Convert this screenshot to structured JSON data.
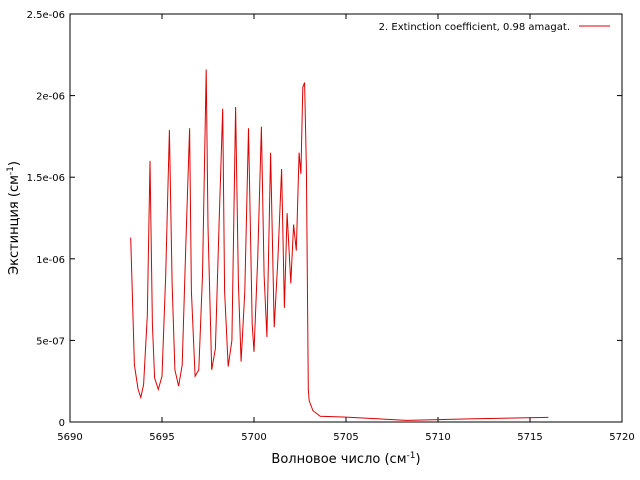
{
  "chart_data": {
    "type": "line",
    "title": "",
    "xlabel": "Волновое число (см",
    "xlabel_sup": "-1",
    "xlabel_tail": ")",
    "ylabel": "Экстинция (см",
    "ylabel_sup": "-1",
    "ylabel_tail": ")",
    "xlim": [
      5690,
      5720
    ],
    "ylim": [
      0,
      2.5e-06
    ],
    "x_ticks": [
      5690,
      5695,
      5700,
      5705,
      5710,
      5715,
      5720
    ],
    "x_tick_labels": [
      "5690",
      "5695",
      "5700",
      "5705",
      "5710",
      "5715",
      "5720"
    ],
    "y_ticks": [
      0,
      5e-07,
      1e-06,
      1.5e-06,
      2e-06,
      2.5e-06
    ],
    "y_tick_labels": [
      "0",
      "5e-07",
      "1e-06",
      "1.5e-06",
      "2e-06",
      "2.5e-06"
    ],
    "grid": false,
    "legend_position": "top-right",
    "series_color": "#dd0000",
    "series": [
      {
        "name": "2. Extinction coefficient, 0.98 amagat.",
        "x": [
          5693.3,
          5693.5,
          5693.7,
          5693.85,
          5694.0,
          5694.2,
          5694.35,
          5694.48,
          5694.6,
          5694.8,
          5695.0,
          5695.2,
          5695.4,
          5695.55,
          5695.7,
          5695.9,
          5696.1,
          5696.3,
          5696.5,
          5696.6,
          5696.8,
          5697.0,
          5697.2,
          5697.4,
          5697.5,
          5697.7,
          5697.9,
          5698.1,
          5698.3,
          5698.4,
          5698.6,
          5698.8,
          5699.0,
          5699.15,
          5699.3,
          5699.5,
          5699.7,
          5699.9,
          5700.0,
          5700.2,
          5700.4,
          5700.55,
          5700.7,
          5700.9,
          5701.1,
          5701.3,
          5701.5,
          5701.65,
          5701.8,
          5702.0,
          5702.15,
          5702.3,
          5702.45,
          5702.55,
          5702.65,
          5702.75,
          5702.85,
          5702.95,
          5703.0,
          5703.2,
          5703.6,
          5705.0,
          5708.3,
          5712.0,
          5716.0
        ],
        "y": [
          1.13e-06,
          3.5e-07,
          2e-07,
          1.5e-07,
          2.3e-07,
          6.5e-07,
          1.6e-06,
          6e-07,
          2.7e-07,
          2e-07,
          2.8e-07,
          9e-07,
          1.79e-06,
          8.5e-07,
          3.2e-07,
          2.2e-07,
          3.5e-07,
          1.1e-06,
          1.8e-06,
          8e-07,
          2.8e-07,
          3.2e-07,
          9e-07,
          2.16e-06,
          1.2e-06,
          3.2e-07,
          4.5e-07,
          1.2e-06,
          1.92e-06,
          8e-07,
          3.4e-07,
          5e-07,
          1.93e-06,
          8.5e-07,
          3.7e-07,
          8e-07,
          1.8e-06,
          6e-07,
          4.3e-07,
          1e-06,
          1.81e-06,
          9e-07,
          5.2e-07,
          1.65e-06,
          5.8e-07,
          1e-06,
          1.55e-06,
          7e-07,
          1.28e-06,
          8.5e-07,
          1.21e-06,
          1.05e-06,
          1.65e-06,
          1.52e-06,
          2.05e-06,
          2.08e-06,
          1.55e-06,
          2e-07,
          1.3e-07,
          7e-08,
          3.5e-08,
          3e-08,
          1e-08,
          2e-08,
          2.8e-08
        ]
      }
    ]
  }
}
